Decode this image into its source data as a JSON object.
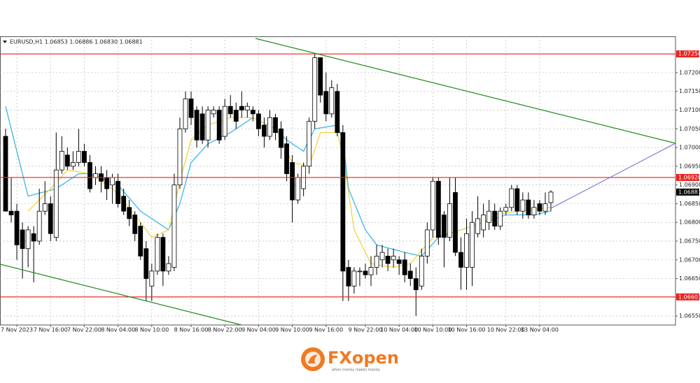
{
  "chart_data": {
    "type": "candlestick",
    "title": "EURUSD,H1  1.06853 1.06886 1.06830 1.06881",
    "categories": [
      null,
      null,
      "7 Nov 2023",
      null,
      null,
      null,
      null,
      null,
      "7 Nov 16:00",
      null,
      null,
      null,
      null,
      null,
      "7 Nov 22:00",
      null,
      null,
      null,
      null,
      null,
      "8 Nov 04:00",
      null,
      null,
      null,
      null,
      null,
      "8 Nov 10:00",
      null,
      null,
      null,
      null,
      null,
      null,
      "8 Nov 16:00",
      null,
      null,
      null,
      null,
      null,
      "8 Nov 22:00",
      null,
      null,
      null,
      null,
      null,
      "9 Nov 04:00",
      null,
      null,
      null,
      null,
      null,
      "9 Nov 10:00",
      null,
      null,
      null,
      null,
      null,
      "9 Nov 16:00",
      null,
      null,
      null,
      null,
      null,
      null,
      "9 Nov 22:00",
      null,
      null,
      null,
      null,
      null,
      "10 Nov 04:00",
      null,
      null,
      null,
      null,
      null,
      "10 Nov 10:00",
      null,
      null,
      null,
      null,
      null,
      "10 Nov 16:00",
      null,
      null,
      null,
      null,
      null,
      null,
      "10 Nov 22:00",
      null,
      null,
      null,
      null,
      null,
      "13 Nov 04:00",
      null,
      null
    ],
    "open": [
      1.0703,
      1.0683,
      1.0683,
      1.0678,
      1.0673,
      1.0677,
      1.0675,
      1.0683,
      1.0685,
      1.0676,
      1.0694,
      1.0698,
      1.0695,
      1.0696,
      1.0699,
      1.0696,
      1.0692,
      1.0693,
      1.0692,
      1.069,
      1.0691,
      1.0687,
      1.0684,
      1.0682,
      1.0679,
      1.0673,
      1.0663,
      1.0667,
      1.0676,
      1.0667,
      1.0668,
      1.069,
      1.0705,
      1.0713,
      1.071,
      1.0709,
      1.0702,
      1.0709,
      1.071,
      1.0703,
      1.0711,
      1.071,
      1.0711,
      1.071,
      1.071,
      1.0709,
      1.0706,
      1.0703,
      1.0708,
      1.0705,
      1.0701,
      1.0696,
      1.0686,
      1.0689,
      1.0695,
      1.0707,
      1.0724,
      1.0715,
      1.0709,
      1.0715,
      1.0704,
      1.0668,
      1.0663,
      1.0667,
      1.0667,
      1.0666,
      1.0668,
      1.067,
      1.0671,
      1.067,
      1.067,
      1.067,
      1.0667,
      1.0665,
      1.0663,
      1.0671,
      1.0678,
      1.0691,
      1.0682,
      1.0676,
      1.0688,
      1.0672,
      1.0668,
      1.0668,
      1.0677,
      1.0678,
      1.068,
      1.0683,
      1.0679,
      1.0683,
      1.0684,
      1.0689,
      1.0683,
      1.0686,
      1.0682,
      1.0685,
      1.0683,
      1.06853
    ],
    "high": [
      1.0705,
      1.0692,
      1.0685,
      1.068,
      1.0679,
      1.0679,
      1.0689,
      1.0691,
      1.0687,
      1.0704,
      1.0703,
      1.07,
      1.0699,
      1.0705,
      1.0701,
      1.0698,
      1.0695,
      1.0695,
      1.0694,
      1.0693,
      1.0693,
      1.0689,
      1.0686,
      1.0683,
      1.068,
      1.0675,
      1.0669,
      1.0677,
      1.0677,
      1.0671,
      1.0693,
      1.0708,
      1.0715,
      1.0715,
      1.0711,
      1.0711,
      1.0711,
      1.0711,
      1.0711,
      1.0713,
      1.0714,
      1.0712,
      1.0715,
      1.0712,
      1.0711,
      1.071,
      1.0708,
      1.071,
      1.0709,
      1.0707,
      1.0703,
      1.0698,
      1.0693,
      1.0696,
      1.0708,
      1.0725,
      1.0724,
      1.072,
      1.0718,
      1.0717,
      1.0706,
      1.067,
      1.0668,
      1.0668,
      1.0669,
      1.0671,
      1.0674,
      1.0674,
      1.0673,
      1.0673,
      1.0671,
      1.0672,
      1.0669,
      1.0668,
      1.0673,
      1.068,
      1.0692,
      1.0692,
      1.0683,
      1.0692,
      1.0692,
      1.0676,
      1.0681,
      1.0683,
      1.0687,
      1.0685,
      1.0686,
      1.0685,
      1.0684,
      1.0685,
      1.069,
      1.069,
      1.0688,
      1.0688,
      1.0686,
      1.0686,
      1.0688,
      1.06886
    ],
    "low": [
      1.0683,
      1.068,
      1.067,
      1.0665,
      1.0668,
      1.0664,
      1.0674,
      1.0682,
      1.0675,
      1.0675,
      1.0693,
      1.0694,
      1.0694,
      1.0695,
      1.0695,
      1.0688,
      1.069,
      1.0688,
      1.0686,
      1.0685,
      1.0684,
      1.0682,
      1.0679,
      1.0675,
      1.067,
      1.0659,
      1.0659,
      1.0666,
      1.0663,
      1.0666,
      1.0667,
      1.0689,
      1.0704,
      1.0706,
      1.07,
      1.0701,
      1.07,
      1.0708,
      1.0701,
      1.0702,
      1.0708,
      1.0705,
      1.0708,
      1.0708,
      1.0707,
      1.0703,
      1.07,
      1.0702,
      1.0702,
      1.0697,
      1.0691,
      1.068,
      1.0685,
      1.0687,
      1.0693,
      1.0705,
      1.0712,
      1.0707,
      1.0708,
      1.0703,
      1.0659,
      1.0659,
      1.0661,
      1.0663,
      1.0665,
      1.0663,
      1.0666,
      1.0668,
      1.0667,
      1.0668,
      1.0666,
      1.0664,
      1.0663,
      1.0655,
      1.0662,
      1.0669,
      1.0676,
      1.0674,
      1.0668,
      1.0675,
      1.0671,
      1.0662,
      1.0662,
      1.0663,
      1.0676,
      1.0676,
      1.0678,
      1.0678,
      1.0678,
      1.0682,
      1.0683,
      1.0682,
      1.0681,
      1.0681,
      1.0681,
      1.0682,
      1.0682,
      1.0683
    ],
    "close": [
      1.0683,
      1.0682,
      1.0674,
      1.0673,
      1.0678,
      1.0675,
      1.0683,
      1.0685,
      1.0677,
      1.0694,
      1.0699,
      1.0695,
      1.0696,
      1.0699,
      1.0696,
      1.0689,
      1.0693,
      1.0691,
      1.0689,
      1.0692,
      1.0685,
      1.0683,
      1.0681,
      1.0677,
      1.0671,
      1.0665,
      1.0667,
      1.0676,
      1.0667,
      1.0669,
      1.069,
      1.0705,
      1.0713,
      1.0708,
      1.0702,
      1.0702,
      1.071,
      1.071,
      1.0702,
      1.0711,
      1.0709,
      1.0707,
      1.071,
      1.0711,
      1.0709,
      1.0705,
      1.0703,
      1.0708,
      1.0704,
      1.07,
      1.0693,
      1.0686,
      1.0692,
      1.0695,
      1.0707,
      1.0724,
      1.0714,
      1.0709,
      1.0716,
      1.0704,
      1.0667,
      1.0663,
      1.0667,
      1.0667,
      1.0666,
      1.0668,
      1.0671,
      1.0672,
      1.0669,
      1.0671,
      1.0669,
      1.0666,
      1.0665,
      1.0662,
      1.0671,
      1.0678,
      1.0691,
      1.0676,
      1.0676,
      1.0685,
      1.0672,
      1.0668,
      1.0677,
      1.068,
      1.0681,
      1.0682,
      1.0683,
      1.0679,
      1.0683,
      1.0684,
      1.0689,
      1.0683,
      1.0686,
      1.0682,
      1.0684,
      1.0683,
      1.0685,
      1.06881
    ],
    "up_color": "#ffffff",
    "down_color": "#000000",
    "series": [
      {
        "color": "#3ab7e6",
        "x": [
          0,
          4,
          9,
          13,
          15,
          20,
          24,
          29,
          31,
          33,
          36,
          40,
          44,
          48,
          50,
          53,
          55,
          59,
          60,
          61,
          64,
          66,
          71,
          74,
          77,
          81,
          85,
          89,
          94,
          97
        ],
        "values": [
          1.0711,
          1.0687,
          1.0689,
          1.0693,
          1.0693,
          1.069,
          1.0683,
          1.0678,
          1.0685,
          1.0696,
          1.0701,
          1.0704,
          1.0708,
          1.0705,
          1.0702,
          1.0699,
          1.0705,
          1.0706,
          1.0702,
          1.0689,
          1.0678,
          1.0674,
          1.0672,
          1.0671,
          1.0676,
          1.0678,
          1.068,
          1.0682,
          1.0682,
          1.0683
        ]
      },
      {
        "color": "#f3d34a",
        "x": [
          4,
          8,
          11,
          15,
          19,
          23,
          26,
          29,
          31,
          33,
          36,
          40,
          44,
          48,
          51,
          54,
          56,
          59,
          60,
          62,
          65,
          69,
          72,
          76,
          81,
          85,
          87,
          91,
          97
        ],
        "values": [
          1.0683,
          1.0689,
          1.0694,
          1.0693,
          1.0689,
          1.0682,
          1.0676,
          1.0678,
          1.0691,
          1.0702,
          1.0706,
          1.0708,
          1.0708,
          1.0705,
          1.0696,
          1.0695,
          1.0704,
          1.0704,
          1.0698,
          1.0678,
          1.0669,
          1.0668,
          1.0669,
          1.0676,
          1.0678,
          1.068,
          1.0682,
          1.0683,
          1.0684
        ]
      }
    ],
    "levels": [
      {
        "value": 1.0725,
        "label": "1.07250"
      },
      {
        "value": 1.0692,
        "label": "1.06920"
      },
      {
        "value": 1.06601,
        "label": "1.06601"
      }
    ],
    "level_color": "#e8231e",
    "last_price": {
      "value": 1.06881,
      "label": "1.06881"
    },
    "ylim": [
      1.06526,
      1.07297
    ],
    "yticks": [
      {
        "value": 1.0655,
        "label": "1.06550"
      },
      {
        "value": 1.066,
        "label": "1.06600"
      },
      {
        "value": 1.0665,
        "label": "1.06650"
      },
      {
        "value": 1.067,
        "label": "1.06700"
      },
      {
        "value": 1.0675,
        "label": "1.06750"
      },
      {
        "value": 1.068,
        "label": "1.06800"
      },
      {
        "value": 1.0685,
        "label": "1.06850"
      },
      {
        "value": 1.069,
        "label": "1.06900"
      },
      {
        "value": 1.0695,
        "label": "1.06950"
      },
      {
        "value": 1.07,
        "label": "1.07000"
      },
      {
        "value": 1.0705,
        "label": "1.07050"
      },
      {
        "value": 1.071,
        "label": "1.07100"
      },
      {
        "value": 1.0715,
        "label": "1.07150"
      },
      {
        "value": 1.072,
        "label": "1.07200"
      }
    ],
    "grid": true
  },
  "footer": {
    "brand_prefix": "FX",
    "brand_suffix": "open",
    "tagline": "when money makes money"
  }
}
